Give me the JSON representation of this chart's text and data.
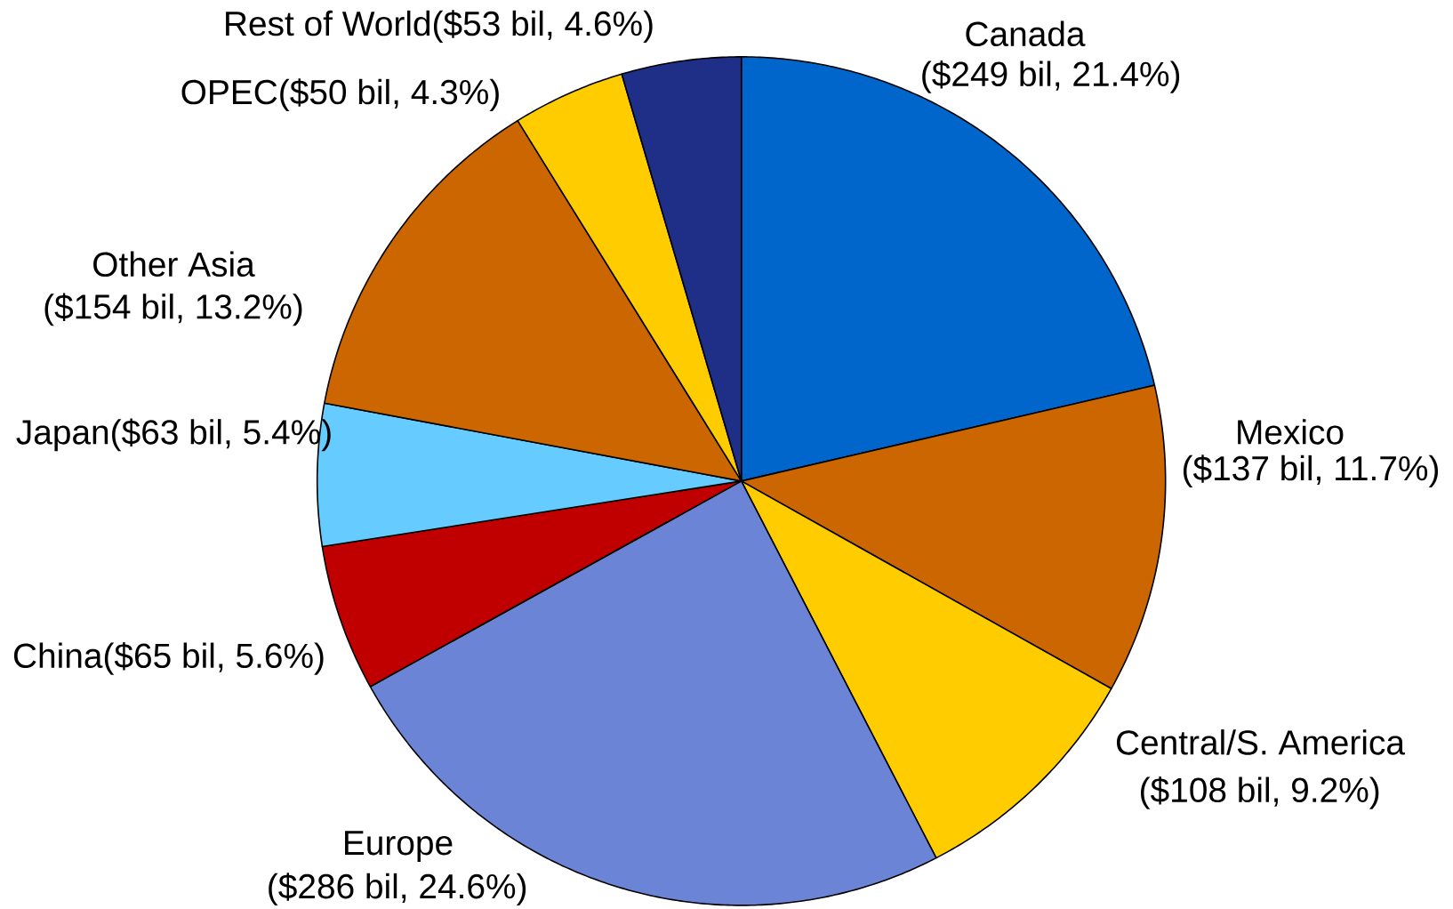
{
  "chart_data": {
    "type": "pie",
    "categories": [
      "Canada",
      "Mexico",
      "Central/S. America",
      "Europe",
      "China",
      "Japan",
      "Other Asia",
      "OPEC",
      "Rest of World"
    ],
    "values": [
      249,
      137,
      108,
      286,
      65,
      63,
      154,
      50,
      53
    ],
    "value_labels": [
      "($249 bil, 21.4%)",
      "($137 bil, 11.7%)",
      "($108 bil, 9.2%)",
      "($286 bil, 24.6%)",
      "($65 bil, 5.6%)",
      "($63 bil, 5.4%)",
      "($154 bil, 13.2%)",
      "($50 bil, 4.3%)",
      "($53 bil, 4.6%)"
    ],
    "colors": [
      "#0066cc",
      "#cc6600",
      "#ffcc00",
      "#6b84d6",
      "#c00000",
      "#66ccff",
      "#cc6600",
      "#ffcc00",
      "#1f2f87"
    ]
  }
}
